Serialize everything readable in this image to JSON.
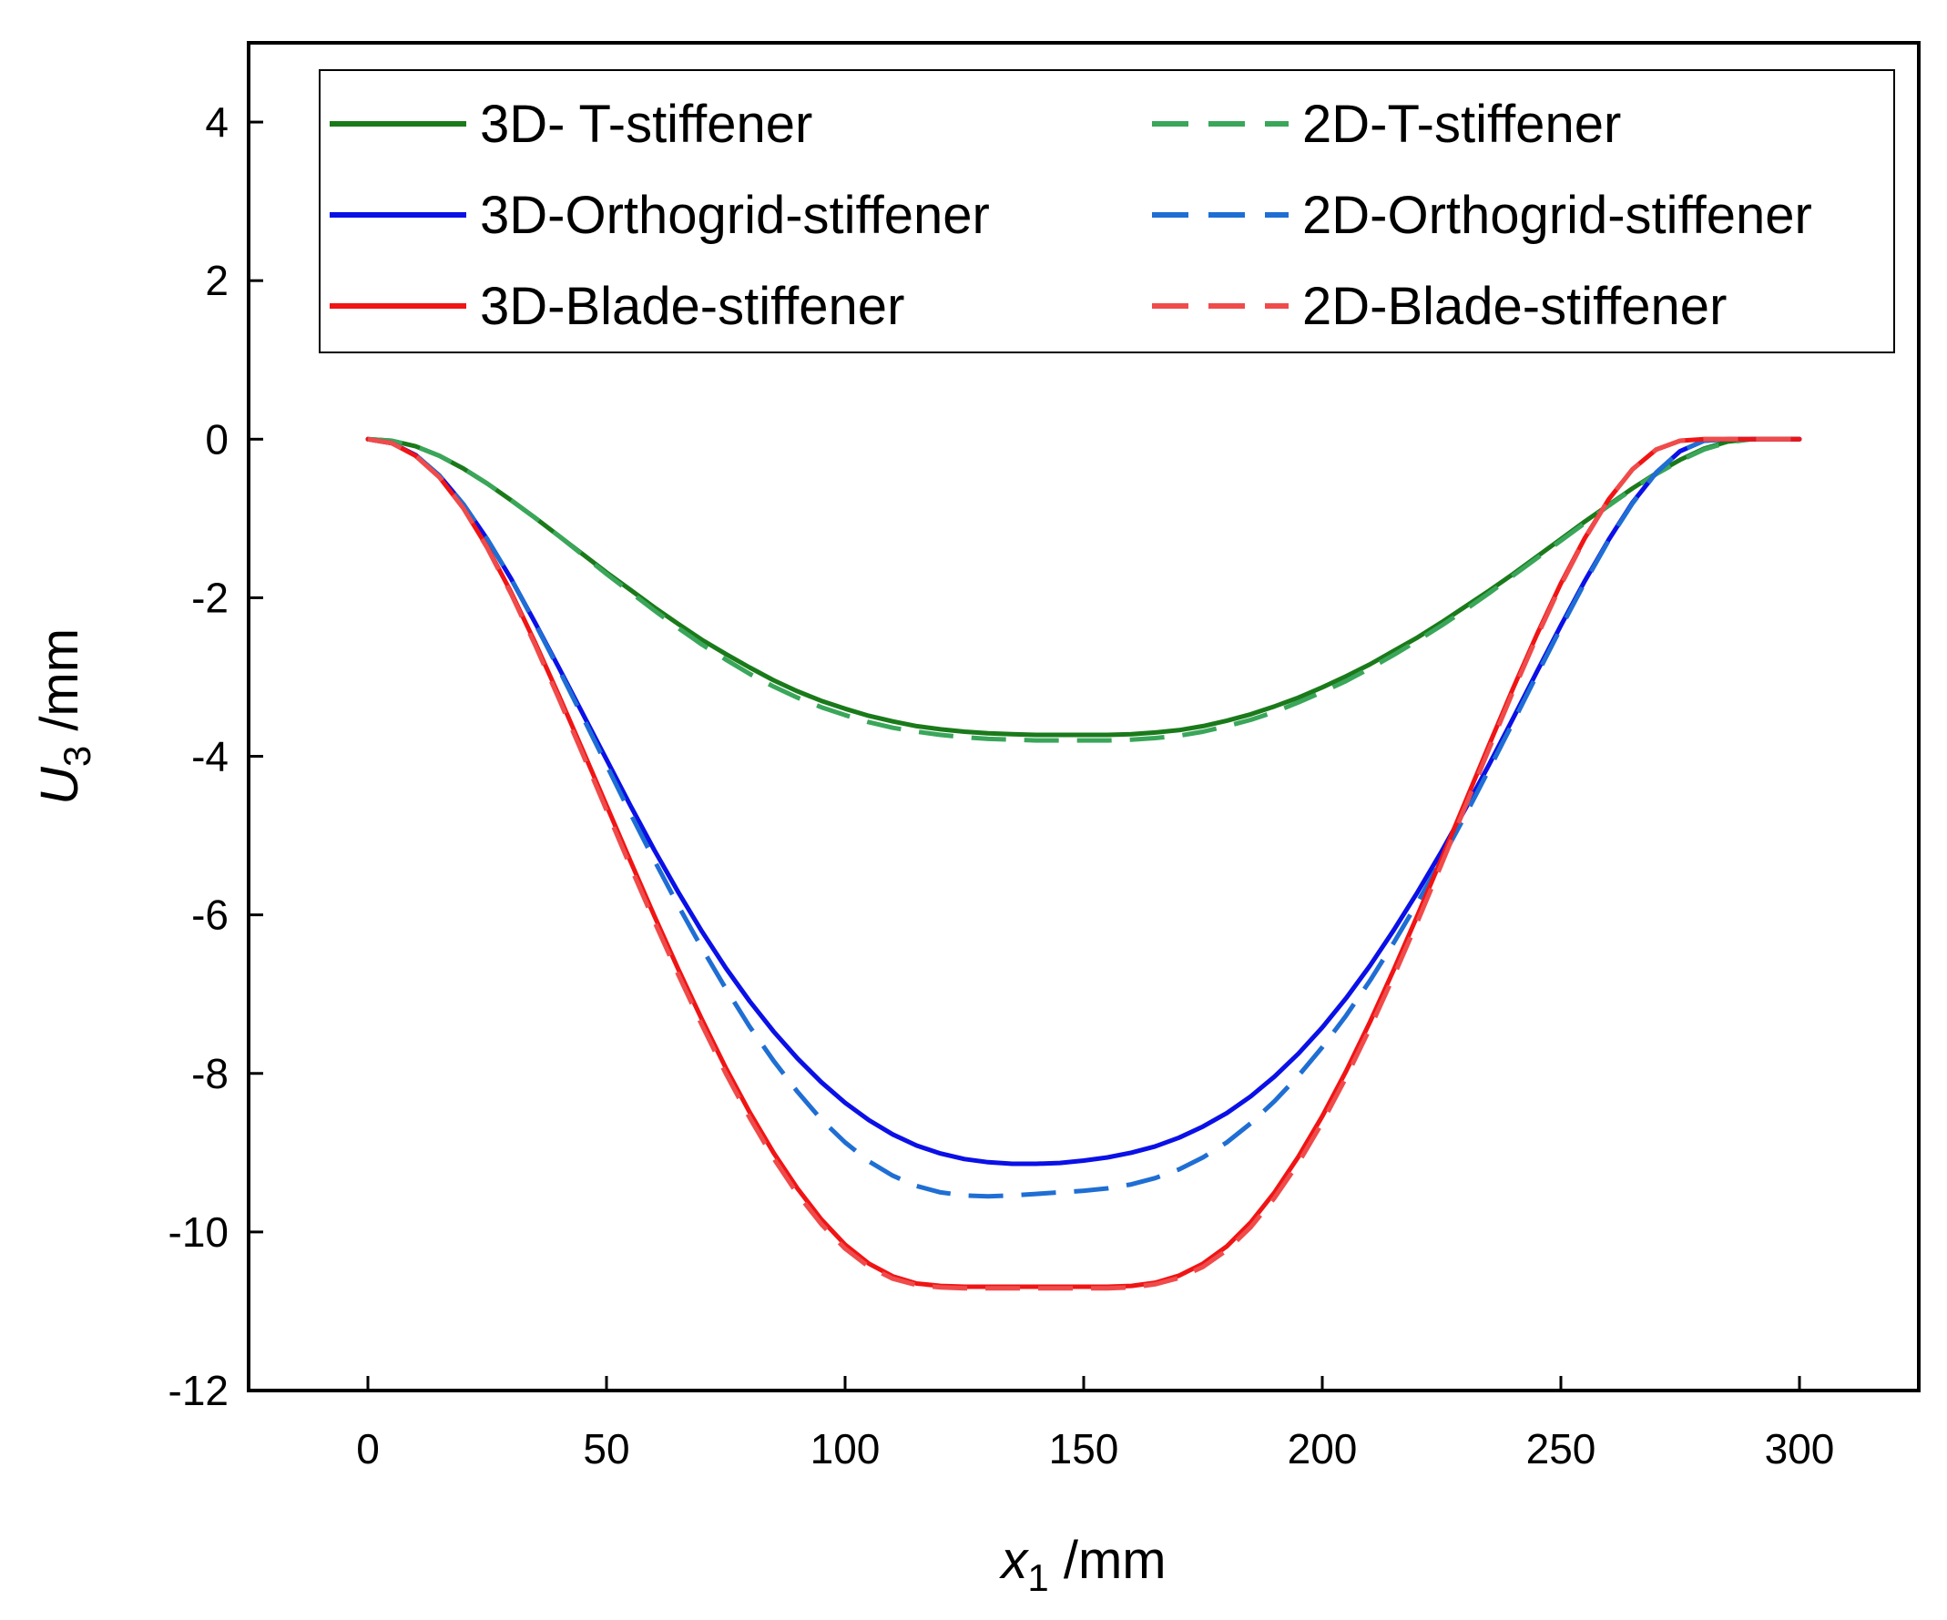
{
  "chart_data": {
    "type": "line",
    "title": "",
    "xlabel": {
      "var": "x",
      "sub": "1",
      "unit": " /mm"
    },
    "ylabel": {
      "var": "U",
      "sub": "3",
      "unit": " /mm"
    },
    "xlim": [
      -25,
      325
    ],
    "ylim": [
      -12,
      5
    ],
    "xticks": [
      0,
      50,
      100,
      150,
      200,
      250,
      300
    ],
    "yticks": [
      4,
      2,
      0,
      -2,
      -4,
      -6,
      -8,
      -10,
      -12
    ],
    "grid": false,
    "legend_position": "top",
    "x": [
      0,
      5,
      10,
      15,
      20,
      25,
      30,
      35,
      40,
      45,
      50,
      55,
      60,
      65,
      70,
      75,
      80,
      85,
      90,
      95,
      100,
      105,
      110,
      115,
      120,
      125,
      130,
      135,
      140,
      145,
      150,
      155,
      160,
      165,
      170,
      175,
      180,
      185,
      190,
      195,
      200,
      205,
      210,
      215,
      220,
      225,
      230,
      235,
      240,
      245,
      250,
      255,
      260,
      265,
      270,
      275,
      280,
      285,
      290,
      295,
      300
    ],
    "series": [
      {
        "name": "3D- T-stiffener",
        "color": "#1a7a1a",
        "dash": "solid",
        "values": [
          0,
          -0.02,
          -0.09,
          -0.21,
          -0.37,
          -0.56,
          -0.77,
          -0.99,
          -1.22,
          -1.45,
          -1.68,
          -1.9,
          -2.12,
          -2.33,
          -2.53,
          -2.71,
          -2.88,
          -3.04,
          -3.18,
          -3.3,
          -3.4,
          -3.49,
          -3.56,
          -3.62,
          -3.66,
          -3.69,
          -3.71,
          -3.72,
          -3.73,
          -3.73,
          -3.73,
          -3.73,
          -3.72,
          -3.7,
          -3.67,
          -3.62,
          -3.55,
          -3.47,
          -3.37,
          -3.26,
          -3.13,
          -2.99,
          -2.84,
          -2.67,
          -2.5,
          -2.31,
          -2.11,
          -1.91,
          -1.7,
          -1.48,
          -1.26,
          -1.04,
          -0.83,
          -0.62,
          -0.43,
          -0.26,
          -0.12,
          -0.03,
          0.0,
          0.0,
          0.0
        ]
      },
      {
        "name": "2D-T-stiffener",
        "color": "#3aa65a",
        "dash": "dashed",
        "values": [
          0,
          -0.02,
          -0.09,
          -0.21,
          -0.37,
          -0.56,
          -0.77,
          -0.99,
          -1.22,
          -1.46,
          -1.7,
          -1.93,
          -2.16,
          -2.38,
          -2.59,
          -2.78,
          -2.96,
          -3.12,
          -3.26,
          -3.38,
          -3.48,
          -3.57,
          -3.64,
          -3.69,
          -3.73,
          -3.76,
          -3.78,
          -3.79,
          -3.8,
          -3.8,
          -3.8,
          -3.8,
          -3.79,
          -3.77,
          -3.74,
          -3.69,
          -3.62,
          -3.54,
          -3.44,
          -3.32,
          -3.19,
          -3.05,
          -2.89,
          -2.72,
          -2.54,
          -2.35,
          -2.15,
          -1.94,
          -1.72,
          -1.5,
          -1.28,
          -1.06,
          -0.84,
          -0.63,
          -0.44,
          -0.27,
          -0.13,
          -0.04,
          0.0,
          0.0,
          0.0
        ]
      },
      {
        "name": "3D-Orthogrid-stiffener",
        "color": "#0a10e6",
        "dash": "solid",
        "values": [
          0,
          -0.05,
          -0.2,
          -0.46,
          -0.82,
          -1.26,
          -1.76,
          -2.31,
          -2.88,
          -3.46,
          -4.04,
          -4.62,
          -5.18,
          -5.71,
          -6.21,
          -6.67,
          -7.09,
          -7.47,
          -7.81,
          -8.11,
          -8.37,
          -8.59,
          -8.77,
          -8.91,
          -9.01,
          -9.08,
          -9.12,
          -9.14,
          -9.14,
          -9.13,
          -9.1,
          -9.06,
          -9.0,
          -8.92,
          -8.81,
          -8.67,
          -8.5,
          -8.29,
          -8.04,
          -7.75,
          -7.42,
          -7.05,
          -6.64,
          -6.19,
          -5.71,
          -5.2,
          -4.66,
          -4.1,
          -3.52,
          -2.93,
          -2.35,
          -1.79,
          -1.27,
          -0.8,
          -0.42,
          -0.15,
          -0.02,
          0.0,
          0.0,
          0.0,
          0.0
        ]
      },
      {
        "name": "2D-Orthogrid-stiffener",
        "color": "#1f6ed4",
        "dash": "dashed",
        "values": [
          0,
          -0.05,
          -0.2,
          -0.46,
          -0.82,
          -1.26,
          -1.76,
          -2.32,
          -2.9,
          -3.5,
          -4.11,
          -4.72,
          -5.31,
          -5.88,
          -6.42,
          -6.93,
          -7.41,
          -7.84,
          -8.23,
          -8.58,
          -8.87,
          -9.11,
          -9.29,
          -9.42,
          -9.5,
          -9.54,
          -9.55,
          -9.54,
          -9.52,
          -9.5,
          -9.48,
          -9.45,
          -9.4,
          -9.32,
          -9.21,
          -9.06,
          -8.87,
          -8.63,
          -8.35,
          -8.03,
          -7.67,
          -7.27,
          -6.83,
          -6.35,
          -5.84,
          -5.3,
          -4.74,
          -4.16,
          -3.57,
          -2.97,
          -2.38,
          -1.81,
          -1.28,
          -0.81,
          -0.42,
          -0.15,
          -0.02,
          0.0,
          0.0,
          0.0,
          0.0
        ]
      },
      {
        "name": "3D-Blade-stiffener",
        "color": "#f01414",
        "dash": "solid",
        "values": [
          0,
          -0.05,
          -0.21,
          -0.48,
          -0.87,
          -1.36,
          -1.93,
          -2.56,
          -3.23,
          -3.92,
          -4.62,
          -5.32,
          -6.01,
          -6.68,
          -7.32,
          -7.93,
          -8.49,
          -9.0,
          -9.45,
          -9.84,
          -10.16,
          -10.4,
          -10.56,
          -10.65,
          -10.68,
          -10.69,
          -10.69,
          -10.69,
          -10.69,
          -10.69,
          -10.69,
          -10.69,
          -10.68,
          -10.64,
          -10.55,
          -10.4,
          -10.18,
          -9.88,
          -9.5,
          -9.05,
          -8.54,
          -7.97,
          -7.35,
          -6.69,
          -6.0,
          -5.29,
          -4.57,
          -3.85,
          -3.14,
          -2.46,
          -1.82,
          -1.25,
          -0.76,
          -0.38,
          -0.13,
          -0.02,
          0.0,
          0.0,
          0.0,
          0.0,
          0.0
        ]
      },
      {
        "name": "2D-Blade-stiffener",
        "color": "#f04b4b",
        "dash": "dashed",
        "values": [
          0,
          -0.05,
          -0.21,
          -0.48,
          -0.87,
          -1.37,
          -1.95,
          -2.59,
          -3.27,
          -3.97,
          -4.68,
          -5.39,
          -6.08,
          -6.75,
          -7.39,
          -8.0,
          -8.56,
          -9.07,
          -9.52,
          -9.9,
          -10.21,
          -10.44,
          -10.59,
          -10.67,
          -10.7,
          -10.71,
          -10.71,
          -10.71,
          -10.71,
          -10.71,
          -10.71,
          -10.71,
          -10.7,
          -10.66,
          -10.58,
          -10.44,
          -10.23,
          -9.94,
          -9.57,
          -9.13,
          -8.62,
          -8.05,
          -7.43,
          -6.77,
          -6.08,
          -5.36,
          -4.63,
          -3.9,
          -3.18,
          -2.49,
          -1.84,
          -1.26,
          -0.76,
          -0.38,
          -0.13,
          -0.02,
          0.0,
          0.0,
          0.0,
          0.0,
          0.0
        ]
      }
    ]
  }
}
